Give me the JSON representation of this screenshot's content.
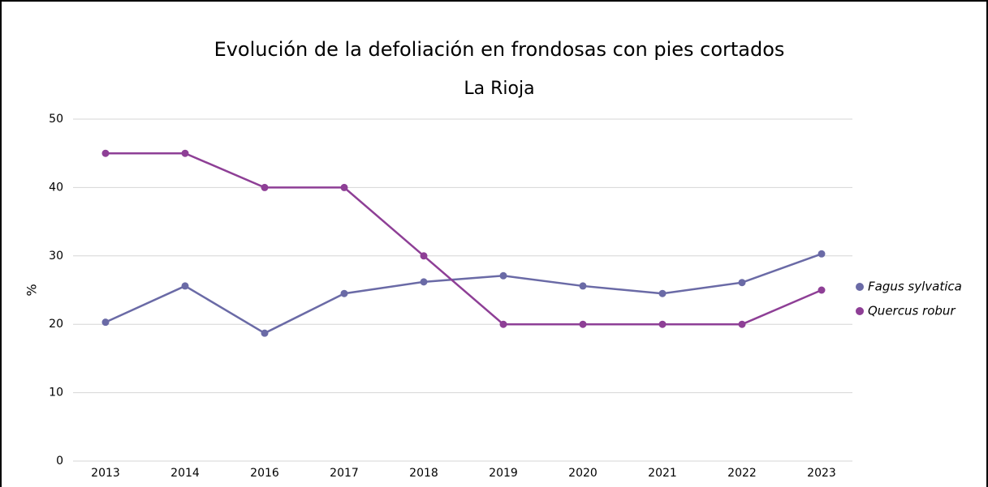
{
  "chart_data": {
    "type": "line",
    "title": "Evolución de la defoliación en frondosas con pies cortados",
    "subtitle": "La Rioja",
    "y_label": "%",
    "categories": [
      "2013",
      "2014",
      "2016",
      "2017",
      "2018",
      "2019",
      "2020",
      "2021",
      "2022",
      "2023"
    ],
    "series": [
      {
        "name": "Fagus sylvatica",
        "color": "#6a6aa6",
        "values": [
          20.3,
          25.6,
          18.7,
          24.5,
          26.2,
          27.1,
          25.6,
          24.5,
          26.1,
          30.3
        ]
      },
      {
        "name": "Quercus robur",
        "color": "#8e3f96",
        "values": [
          45,
          45,
          40,
          40,
          30,
          20,
          20,
          20,
          20,
          25
        ]
      }
    ],
    "ylim": [
      0,
      50
    ],
    "yticks": [
      0,
      10,
      20,
      30,
      40,
      50
    ],
    "grid": true,
    "legend": "right"
  }
}
